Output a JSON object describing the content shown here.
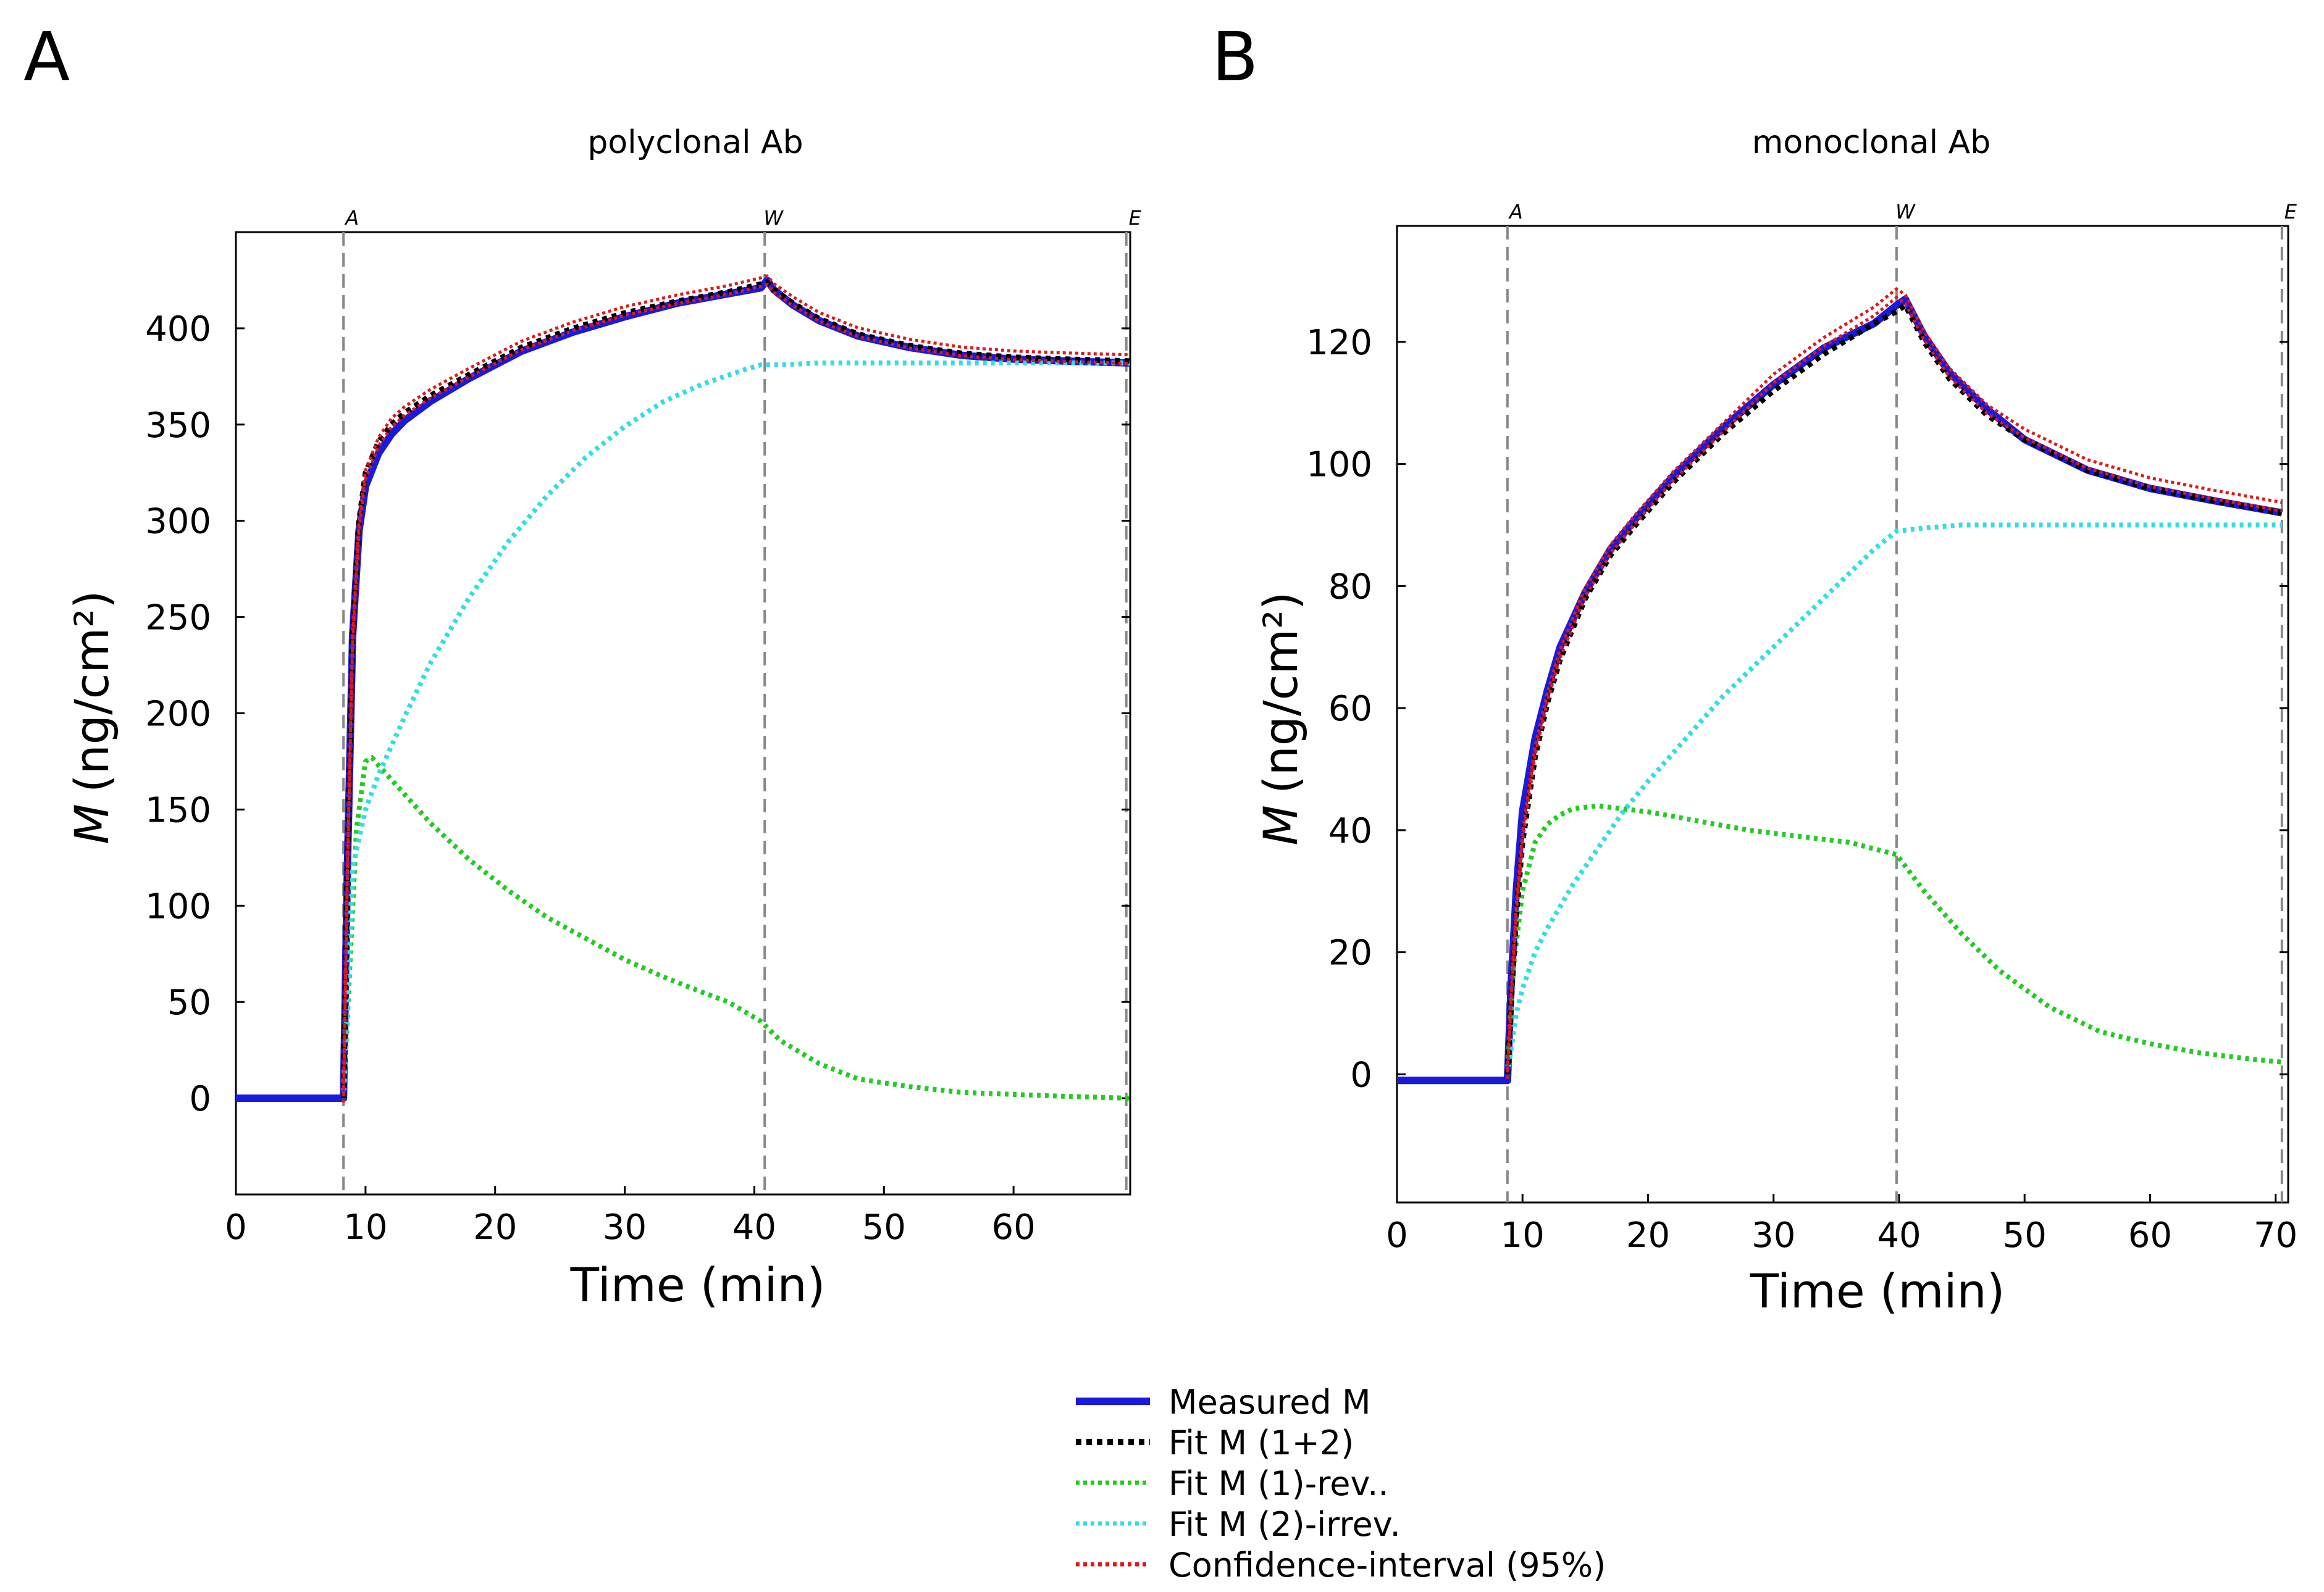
{
  "panels": [
    {
      "letter": "A",
      "chart_data": {
        "type": "line",
        "title": "polyclonal Ab",
        "xlabel": "Time (min)",
        "ylabel_var": "M",
        "ylabel_unit": "(ng/cm²)",
        "xlim": [
          0,
          69
        ],
        "ylim": [
          -50,
          450
        ],
        "xticks": [
          0,
          10,
          20,
          30,
          40,
          50,
          60
        ],
        "yticks": [
          0,
          50,
          100,
          150,
          200,
          250,
          300,
          350,
          400
        ],
        "phase_markers": [
          {
            "label": "A",
            "x": 8.3
          },
          {
            "label": "W",
            "x": 40.8
          },
          {
            "label": "E",
            "x": 68.7
          }
        ],
        "series": [
          {
            "name": "Measured M",
            "color": "#1a1adb",
            "x": [
              0,
              4,
              8,
              8.3,
              8.6,
              9,
              9.5,
              10,
              11,
              12,
              13,
              15,
              18,
              22,
              26,
              30,
              34,
              38,
              40.5,
              41,
              41.5,
              43,
              45,
              48,
              52,
              56,
              60,
              64,
              69
            ],
            "y": [
              0,
              0,
              0,
              0,
              120,
              240,
              295,
              318,
              335,
              345,
              352,
              362,
              374,
              388,
              398,
              406,
              413,
              418,
              421,
              425,
              420,
              412,
              404,
              396,
              390,
              386,
              384,
              383,
              382
            ]
          },
          {
            "name": "Fit M (1+2)",
            "color": "#000000",
            "x": [
              8.3,
              8.6,
              9,
              9.5,
              10,
              11,
              12,
              13,
              15,
              18,
              22,
              26,
              30,
              34,
              38,
              40.5,
              41,
              41.5,
              43,
              45,
              48,
              52,
              56,
              60,
              64,
              69
            ],
            "y": [
              0,
              120,
              240,
              300,
              325,
              341,
              350,
              356,
              365,
              376,
              390,
              400,
              408,
              414,
              419,
              423,
              424,
              420,
              413,
              405,
              397,
              391,
              387,
              385,
              384,
              383
            ]
          },
          {
            "name": "Fit M (1)-rev..",
            "color": "#22cc22",
            "x": [
              8.3,
              8.8,
              9.3,
              10,
              10.5,
              11,
              13,
              15,
              18,
              21,
              24,
              27,
              30,
              33,
              36,
              38,
              40.5,
              42,
              45,
              48,
              52,
              56,
              60,
              64,
              69
            ],
            "y": [
              0,
              70,
              140,
              175,
              177,
              173,
              158,
              143,
              124,
              108,
              94,
              83,
              72,
              63,
              55,
              50,
              40,
              30,
              18,
              10,
              6,
              3,
              2,
              1,
              0
            ]
          },
          {
            "name": "Fit M (2)-irrev.",
            "color": "#33dde6",
            "x": [
              8.3,
              9,
              10,
              11,
              13,
              15,
              18,
              21,
              24,
              27,
              30,
              33,
              36,
              39,
              40.5,
              42,
              45,
              50,
              55,
              60,
              65,
              69
            ],
            "y": [
              0,
              120,
              150,
              168,
              198,
              226,
              260,
              289,
              313,
              333,
              349,
              362,
              371,
              378,
              381,
              381,
              382,
              382,
              382,
              382,
              382,
              382
            ]
          },
          {
            "name": "Confidence-interval (95%)",
            "color": "#e0191b",
            "x": [
              8.3,
              8.6,
              9,
              9.5,
              10,
              11,
              12,
              13,
              15,
              18,
              22,
              26,
              30,
              34,
              38,
              40.5,
              41,
              41.5,
              43,
              45,
              48,
              52,
              56,
              60,
              64,
              69
            ],
            "y": [
              0,
              118,
              238,
              298,
              324,
              341,
              351,
              357,
              366,
              377,
              391,
              401,
              409,
              415,
              420,
              424,
              425,
              421,
              414,
              406,
              398,
              392,
              388,
              386,
              385,
              384
            ]
          }
        ]
      }
    },
    {
      "letter": "B",
      "chart_data": {
        "type": "line",
        "title": "monoclonal Ab",
        "xlabel": "Time (min)",
        "ylabel_var": "M",
        "ylabel_unit": "(ng/cm²)",
        "xlim": [
          0,
          71
        ],
        "ylim": [
          -21,
          139
        ],
        "xticks": [
          0,
          10,
          20,
          30,
          40,
          50,
          60,
          70
        ],
        "yticks": [
          0,
          20,
          40,
          60,
          80,
          100,
          120
        ],
        "phase_markers": [
          {
            "label": "A",
            "x": 8.8
          },
          {
            "label": "W",
            "x": 39.8
          },
          {
            "label": "E",
            "x": 70.5
          }
        ],
        "series": [
          {
            "name": "Measured M",
            "color": "#1a1adb",
            "x": [
              0,
              4,
              8.8,
              9.1,
              9.5,
              10,
              11,
              12,
              13,
              15,
              17,
              19,
              22,
              26,
              30,
              34,
              38,
              39.8,
              40.5,
              41,
              42,
              44,
              47,
              50,
              55,
              60,
              65,
              70.5
            ],
            "y": [
              -1,
              -1,
              -1,
              15,
              30,
              43,
              55,
              63,
              70,
              79,
              86,
              91,
              98,
              106,
              113,
              119,
              123,
              126,
              127,
              125,
              121,
              115,
              109,
              104,
              99,
              96,
              94,
              92
            ]
          },
          {
            "name": "Fit M (1+2)",
            "color": "#000000",
            "x": [
              8.8,
              9.1,
              9.5,
              10,
              11,
              12,
              13,
              15,
              17,
              19,
              22,
              26,
              30,
              34,
              38,
              39.8,
              40.5,
              41,
              42,
              44,
              47,
              50,
              55,
              60,
              65,
              70.5
            ],
            "y": [
              0,
              12,
              26,
              38,
              52,
              61,
              68,
              78,
              85,
              90,
              97,
              105,
              112,
              118,
              123,
              125,
              126,
              124,
              120,
              114,
              108,
              104,
              99,
              96,
              94,
              92
            ]
          },
          {
            "name": "Fit M (1)-rev..",
            "color": "#22cc22",
            "x": [
              8.8,
              9.3,
              10,
              11,
              12,
              13,
              14,
              16,
              18,
              20,
              24,
              28,
              32,
              36,
              39.8,
              42,
              45,
              48,
              52,
              56,
              60,
              64,
              68,
              70.5
            ],
            "y": [
              0,
              18,
              30,
              38,
              41,
              42.5,
              43.5,
              44,
              43.5,
              43,
              41.5,
              40,
              39,
              38,
              36,
              30,
              23,
              17,
              11,
              7,
              5,
              3.5,
              2.5,
              2
            ]
          },
          {
            "name": "Fit M (2)-irrev.",
            "color": "#33dde6",
            "x": [
              8.8,
              9.5,
              10,
              11,
              12,
              14,
              16,
              18,
              20,
              23,
              26,
              30,
              34,
              38,
              39.8,
              42,
              45,
              50,
              55,
              60,
              65,
              70.5
            ],
            "y": [
              0,
              10,
              14,
              20,
              24,
              31,
              37,
              43,
              48,
              55,
              62,
              70,
              78,
              86,
              89,
              89.5,
              90,
              90,
              90,
              90,
              90,
              90
            ]
          },
          {
            "name": "Confidence-interval (95%)",
            "color": "#e0191b",
            "x": [
              8.8,
              9.1,
              9.5,
              10,
              11,
              12,
              13,
              15,
              17,
              19,
              22,
              26,
              30,
              34,
              38,
              39.8,
              40.5,
              41,
              42,
              44,
              47,
              50,
              55,
              60,
              65,
              70.5
            ],
            "y": [
              0,
              13,
              27,
              39,
              53,
              62,
              69,
              79,
              86,
              91,
              98,
              106,
              114,
              120,
              125,
              128,
              127,
              125,
              121,
              115,
              109,
              105,
              100,
              97,
              95,
              93
            ]
          }
        ]
      }
    }
  ],
  "legend": [
    {
      "label": "Measured M",
      "color": "#1a1adb",
      "style": "solid"
    },
    {
      "label": "Fit M (1+2)",
      "color": "#000000",
      "style": "dotted"
    },
    {
      "label": "Fit M (1)-rev..",
      "color": "#22cc22",
      "style": "dotted"
    },
    {
      "label": "Fit M (2)-irrev.",
      "color": "#33dde6",
      "style": "dotted"
    },
    {
      "label": "Confidence-interval (95%)",
      "color": "#e0191b",
      "style": "dotted"
    }
  ]
}
